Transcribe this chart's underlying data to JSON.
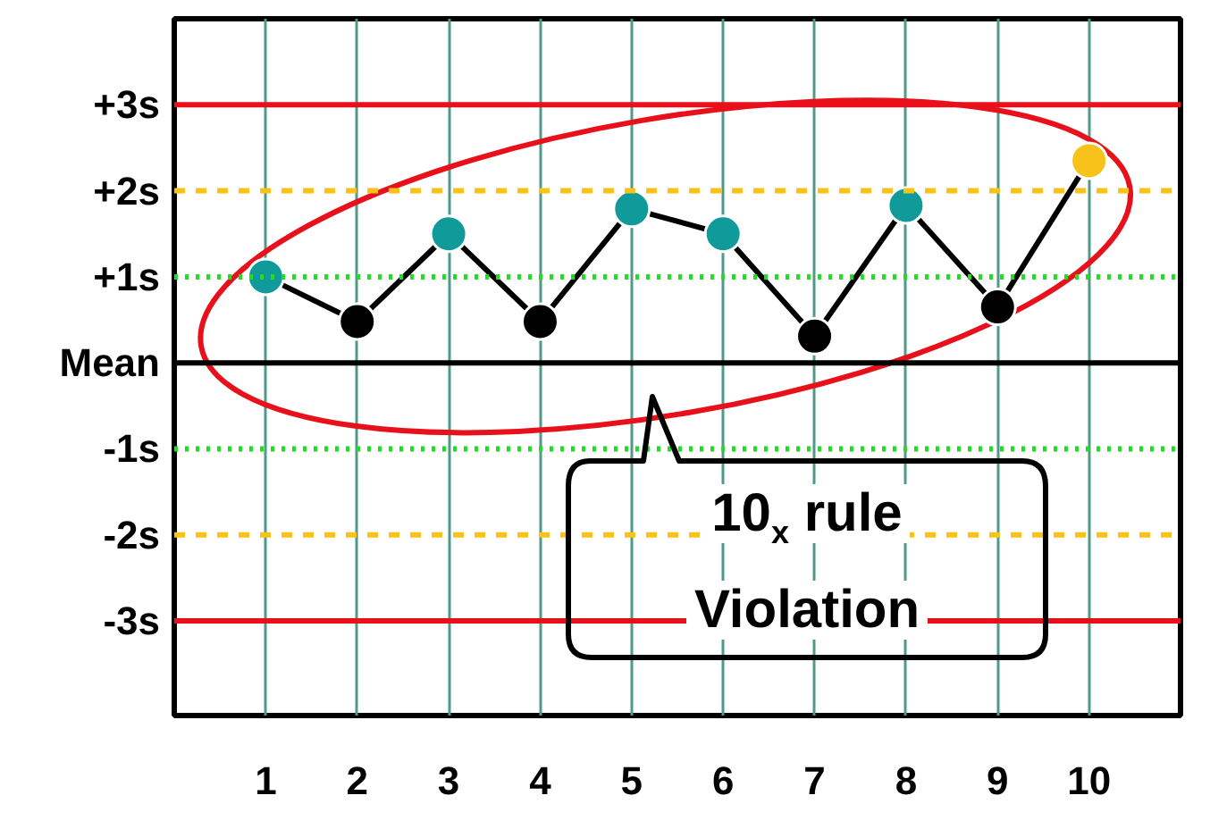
{
  "chart_data": {
    "type": "line",
    "x": [
      1,
      2,
      3,
      4,
      5,
      6,
      7,
      8,
      9,
      10
    ],
    "xlim": [
      0,
      11
    ],
    "xticks": [
      1,
      2,
      3,
      4,
      5,
      6,
      7,
      8,
      9,
      10
    ],
    "ylim": [
      -4.1,
      4
    ],
    "yticks": [
      {
        "value": 3,
        "label": "+3s"
      },
      {
        "value": 2,
        "label": "+2s"
      },
      {
        "value": 1,
        "label": "+1s"
      },
      {
        "value": 0,
        "label": "Mean"
      },
      {
        "value": -1,
        "label": "-1s"
      },
      {
        "value": -2,
        "label": "-2s"
      },
      {
        "value": -3,
        "label": "-3s"
      }
    ],
    "series": [
      {
        "color": "#000000",
        "values": [
          1.0,
          0.48,
          1.5,
          0.48,
          1.79,
          1.5,
          0.31,
          1.83,
          0.65,
          2.35
        ],
        "colors": [
          "#109a9a",
          "#000000",
          "#109a9a",
          "#000000",
          "#109a9a",
          "#109a9a",
          "#000000",
          "#109a9a",
          "#000000",
          "#f7c21a"
        ]
      }
    ],
    "marker": "circle",
    "line_style": "solid",
    "grid": "x",
    "ref_lines": [
      {
        "axis": "y",
        "value": 3,
        "color": "#e8111b",
        "line_style": "solid"
      },
      {
        "axis": "y",
        "value": 2,
        "color": "#f7c21a",
        "line_style": "dashed"
      },
      {
        "axis": "y",
        "value": 1,
        "color": "#22dd22",
        "line_style": "dotted"
      },
      {
        "axis": "y",
        "value": 0,
        "color": "#000000",
        "line_style": "solid"
      },
      {
        "axis": "y",
        "value": -1,
        "color": "#22dd22",
        "line_style": "dotted"
      },
      {
        "axis": "y",
        "value": -2,
        "color": "#f7c21a",
        "line_style": "dashed"
      },
      {
        "axis": "y",
        "value": -3,
        "color": "#e8111b",
        "line_style": "solid"
      }
    ],
    "annotations": [
      "10$_{x}$ rule Violation"
    ]
  }
}
